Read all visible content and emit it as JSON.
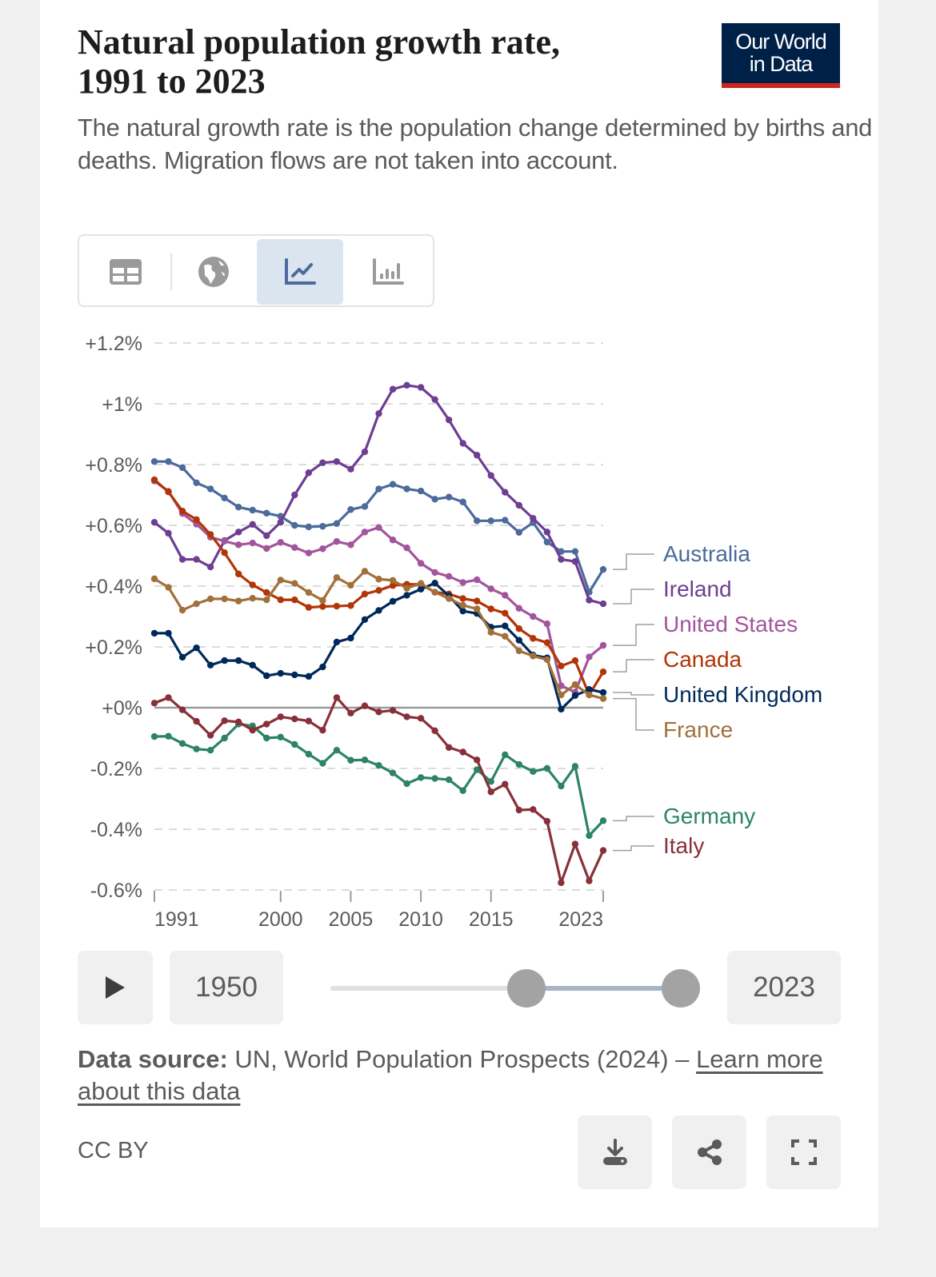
{
  "header": {
    "title_line1": "Natural population growth rate,",
    "title_line2": "1991 to 2023",
    "subtitle": "The natural growth rate is the population change determined by births and deaths. Migration flows are not taken into account.",
    "logo_line1": "Our World",
    "logo_line2": "in Data"
  },
  "tabs": [
    {
      "icon": "table-icon",
      "active": false
    },
    {
      "icon": "globe-icon",
      "active": false
    },
    {
      "icon": "line-chart-icon",
      "active": true
    },
    {
      "icon": "bar-chart-icon",
      "active": false
    }
  ],
  "chart_data": {
    "type": "line",
    "title": "Natural population growth rate, 1991 to 2023",
    "x": [
      1991,
      1992,
      1993,
      1994,
      1995,
      1996,
      1997,
      1998,
      1999,
      2000,
      2001,
      2002,
      2003,
      2004,
      2005,
      2006,
      2007,
      2008,
      2009,
      2010,
      2011,
      2012,
      2013,
      2014,
      2015,
      2016,
      2017,
      2018,
      2019,
      2020,
      2021,
      2022,
      2023
    ],
    "xlim": [
      1991,
      2023
    ],
    "ylim": [
      -0.6,
      1.2
    ],
    "x_ticks": [
      {
        "value": 1991,
        "label": "1991"
      },
      {
        "value": 2000,
        "label": "2000"
      },
      {
        "value": 2005,
        "label": "2005"
      },
      {
        "value": 2010,
        "label": "2010"
      },
      {
        "value": 2015,
        "label": "2015"
      },
      {
        "value": 2023,
        "label": "2023"
      }
    ],
    "y_ticks": [
      {
        "value": 1.2,
        "label": "+1.2%"
      },
      {
        "value": 1.0,
        "label": "+1%"
      },
      {
        "value": 0.8,
        "label": "+0.8%"
      },
      {
        "value": 0.6,
        "label": "+0.6%"
      },
      {
        "value": 0.4,
        "label": "+0.4%"
      },
      {
        "value": 0.2,
        "label": "+0.2%"
      },
      {
        "value": 0.0,
        "label": "+0%"
      },
      {
        "value": -0.2,
        "label": "-0.2%"
      },
      {
        "value": -0.4,
        "label": "-0.4%"
      },
      {
        "value": -0.6,
        "label": "-0.6%"
      }
    ],
    "grid": true,
    "legend": "right (inline labels)",
    "series": [
      {
        "name": "Australia",
        "color": "#4C6A9C",
        "values": [
          0.81,
          0.81,
          0.79,
          0.74,
          0.72,
          0.69,
          0.66,
          0.65,
          0.64,
          0.63,
          0.6,
          0.595,
          0.597,
          0.606,
          0.652,
          0.662,
          0.72,
          0.735,
          0.72,
          0.713,
          0.686,
          0.693,
          0.677,
          0.615,
          0.615,
          0.617,
          0.577,
          0.609,
          0.545,
          0.514,
          0.514,
          0.38,
          0.455
        ]
      },
      {
        "name": "Ireland",
        "color": "#6D3E91",
        "values": [
          0.61,
          0.574,
          0.488,
          0.488,
          0.463,
          0.55,
          0.578,
          0.603,
          0.566,
          0.61,
          0.7,
          0.773,
          0.806,
          0.81,
          0.785,
          0.842,
          0.968,
          1.048,
          1.061,
          1.054,
          1.014,
          0.947,
          0.87,
          0.831,
          0.764,
          0.709,
          0.666,
          0.623,
          0.578,
          0.488,
          0.481,
          0.354,
          0.342
        ]
      },
      {
        "name": "United States",
        "color": "#A2559C",
        "values": [
          0.746,
          0.712,
          0.639,
          0.604,
          0.561,
          0.548,
          0.536,
          0.542,
          0.524,
          0.544,
          0.527,
          0.509,
          0.523,
          0.547,
          0.536,
          0.578,
          0.593,
          0.552,
          0.526,
          0.475,
          0.445,
          0.432,
          0.412,
          0.421,
          0.391,
          0.37,
          0.327,
          0.3,
          0.276,
          0.072,
          0.051,
          0.167,
          0.205
        ]
      },
      {
        "name": "Canada",
        "color": "#B13507",
        "values": [
          0.75,
          0.71,
          0.647,
          0.619,
          0.57,
          0.51,
          0.44,
          0.404,
          0.379,
          0.355,
          0.355,
          0.33,
          0.333,
          0.334,
          0.336,
          0.374,
          0.386,
          0.402,
          0.406,
          0.406,
          0.38,
          0.374,
          0.359,
          0.351,
          0.325,
          0.311,
          0.26,
          0.228,
          0.214,
          0.137,
          0.155,
          0.042,
          0.118
        ]
      },
      {
        "name": "United Kingdom",
        "color": "#00295B",
        "values": [
          0.245,
          0.245,
          0.166,
          0.197,
          0.14,
          0.155,
          0.155,
          0.14,
          0.105,
          0.113,
          0.108,
          0.103,
          0.134,
          0.216,
          0.229,
          0.29,
          0.32,
          0.35,
          0.37,
          0.39,
          0.41,
          0.368,
          0.318,
          0.31,
          0.265,
          0.269,
          0.222,
          0.173,
          0.164,
          -0.005,
          0.04,
          0.06,
          0.05
        ]
      },
      {
        "name": "France",
        "color": "#A2703A",
        "values": [
          0.424,
          0.396,
          0.321,
          0.342,
          0.358,
          0.358,
          0.351,
          0.36,
          0.355,
          0.42,
          0.409,
          0.379,
          0.353,
          0.428,
          0.403,
          0.449,
          0.423,
          0.419,
          0.393,
          0.409,
          0.38,
          0.359,
          0.337,
          0.325,
          0.248,
          0.235,
          0.187,
          0.17,
          0.158,
          0.042,
          0.076,
          0.042,
          0.03
        ]
      },
      {
        "name": "Germany",
        "color": "#2C8465",
        "values": [
          -0.095,
          -0.094,
          -0.118,
          -0.136,
          -0.14,
          -0.1,
          -0.054,
          -0.06,
          -0.1,
          -0.097,
          -0.121,
          -0.153,
          -0.183,
          -0.14,
          -0.173,
          -0.172,
          -0.19,
          -0.215,
          -0.25,
          -0.23,
          -0.233,
          -0.237,
          -0.273,
          -0.204,
          -0.243,
          -0.155,
          -0.187,
          -0.21,
          -0.2,
          -0.258,
          -0.193,
          -0.421,
          -0.372
        ]
      },
      {
        "name": "Italy",
        "color": "#883039",
        "values": [
          0.015,
          0.033,
          -0.007,
          -0.045,
          -0.091,
          -0.043,
          -0.047,
          -0.074,
          -0.054,
          -0.03,
          -0.037,
          -0.044,
          -0.074,
          0.033,
          -0.018,
          0.006,
          -0.014,
          -0.009,
          -0.03,
          -0.035,
          -0.076,
          -0.131,
          -0.146,
          -0.172,
          -0.277,
          -0.252,
          -0.337,
          -0.335,
          -0.374,
          -0.576,
          -0.449,
          -0.57,
          -0.47
        ]
      }
    ]
  },
  "timeline": {
    "start_year": "1950",
    "end_year": "2023",
    "play_icon": "play-icon"
  },
  "footer": {
    "source_label": "Data source:",
    "source_text": " UN, World Population Prospects (2024) – ",
    "learn_more": "Learn more about this data",
    "license": "CC BY",
    "buttons": [
      "download-icon",
      "share-icon",
      "fullscreen-icon"
    ]
  }
}
